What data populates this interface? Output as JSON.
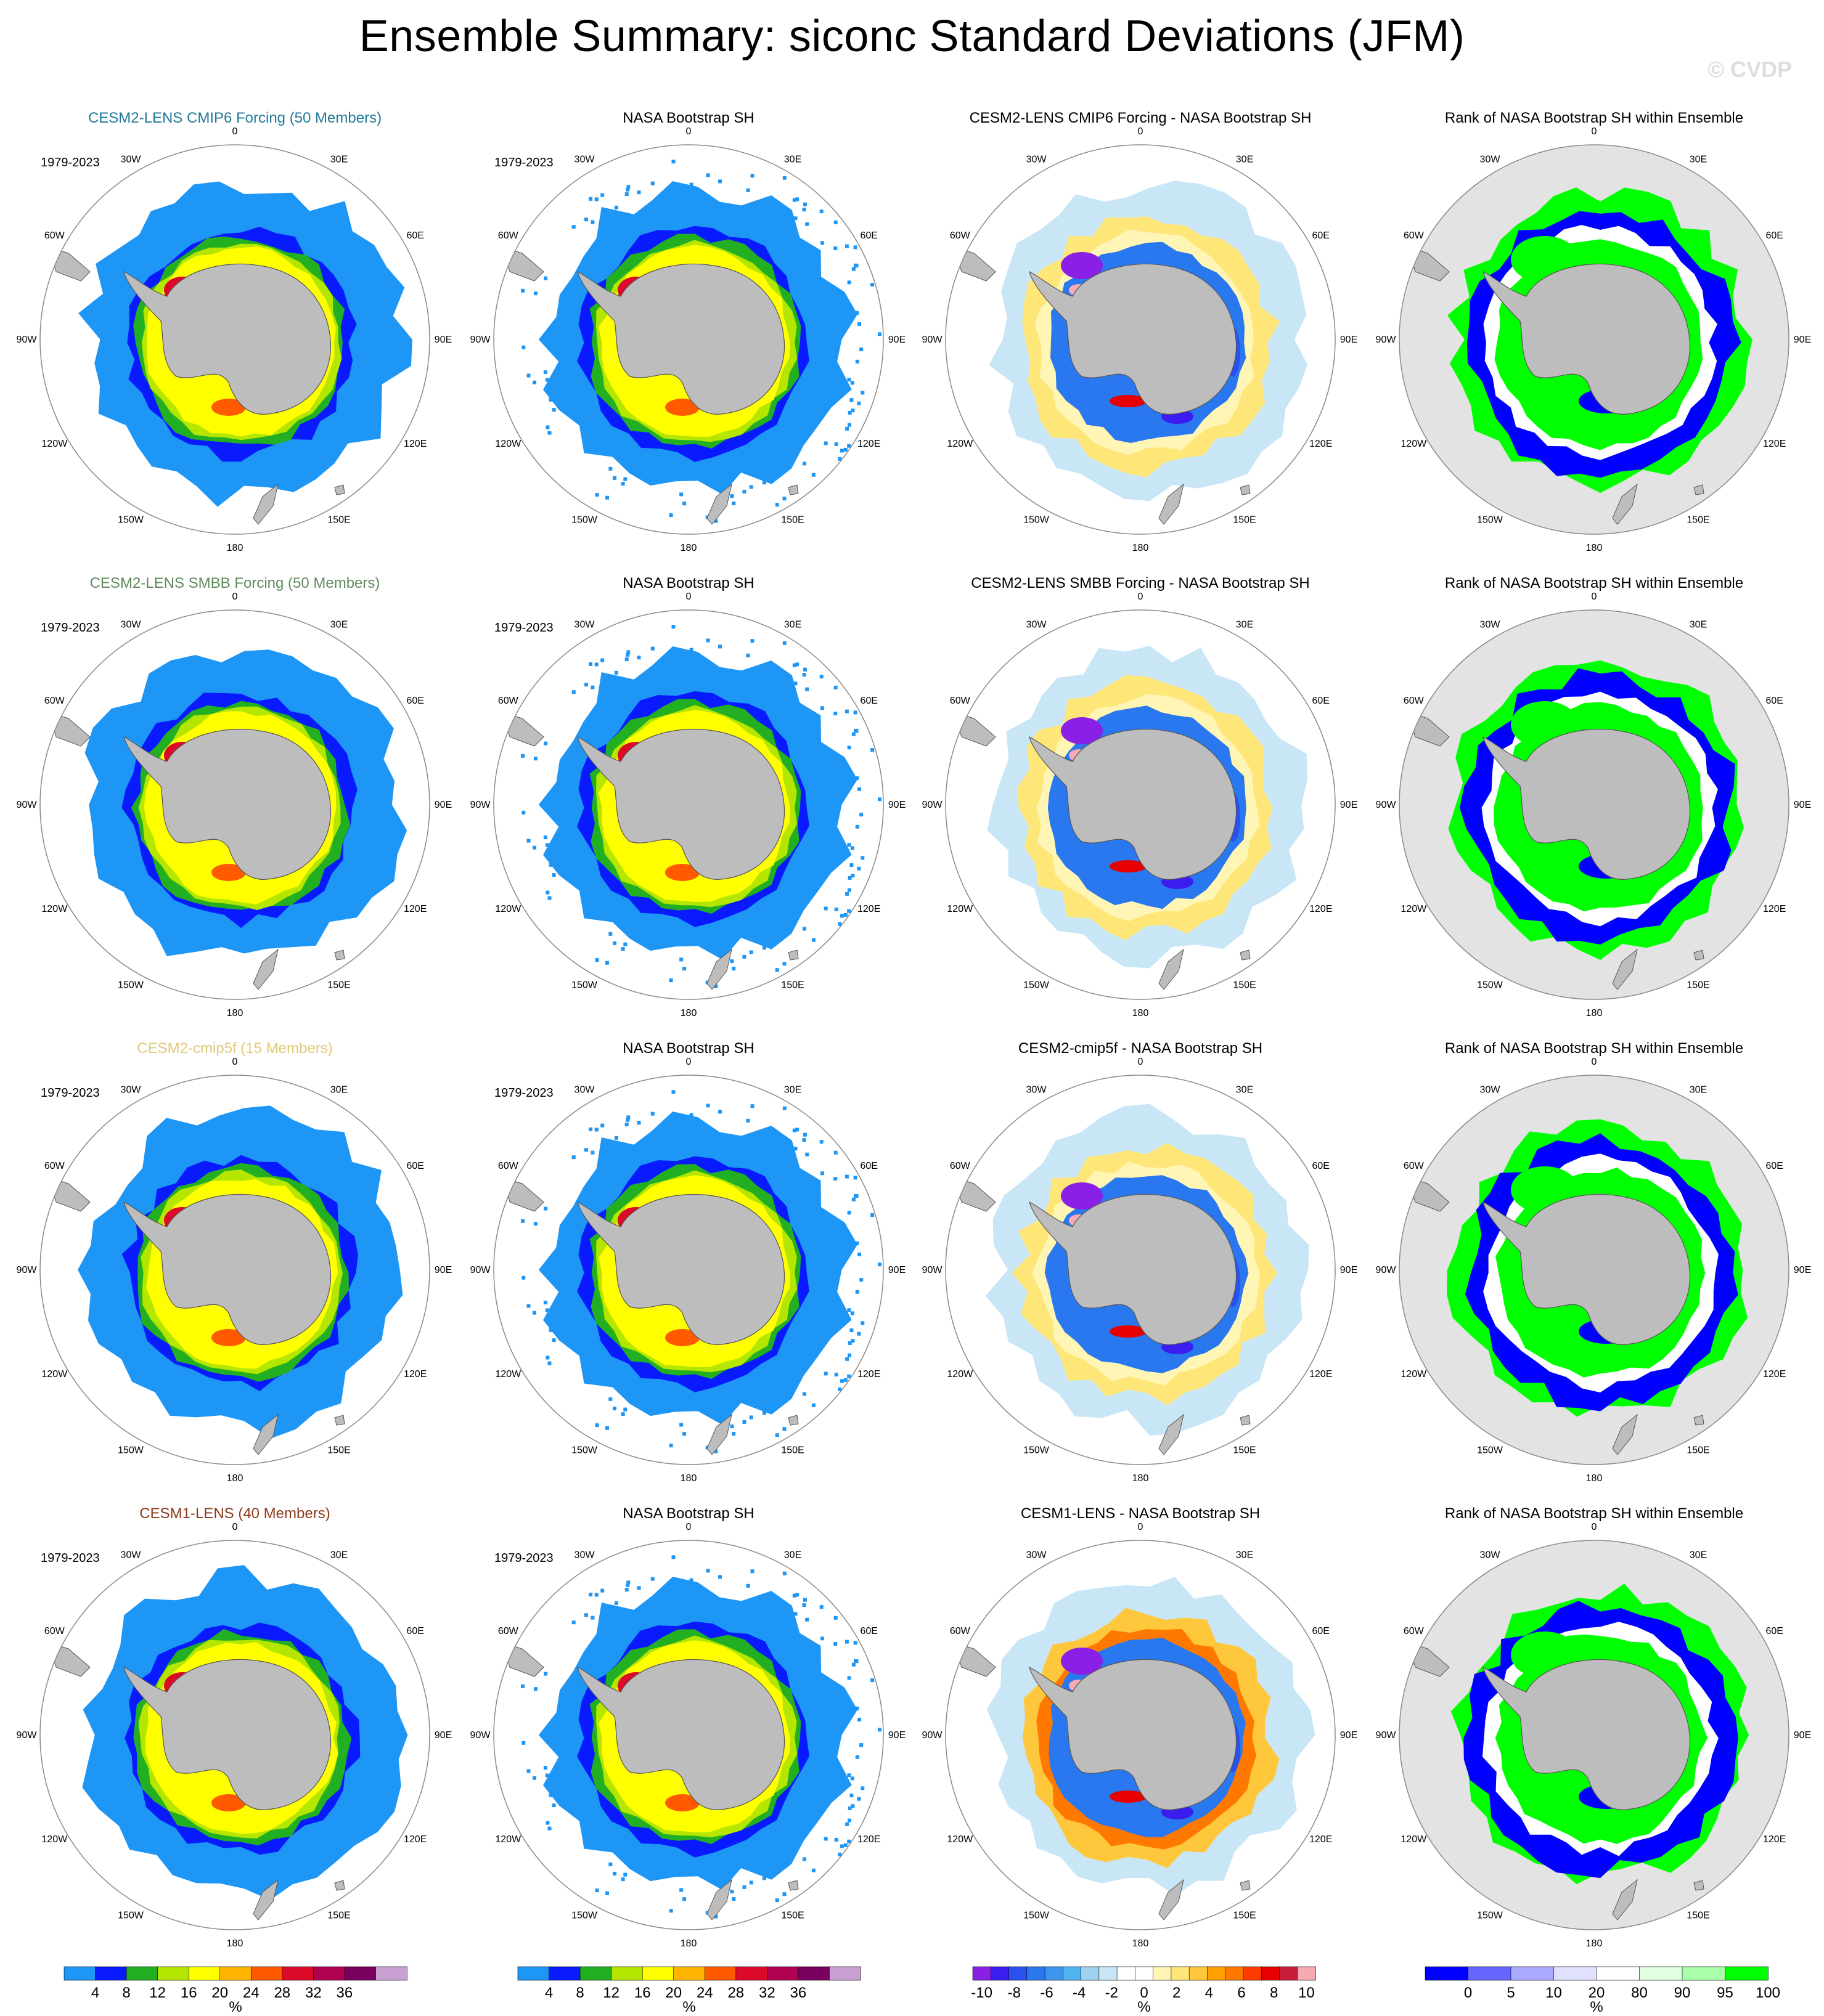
{
  "title": "Ensemble Summary: siconc Standard Deviations (JFM)",
  "watermark": "© CVDP",
  "period": "1979-2023",
  "lon_labels": [
    "0",
    "30E",
    "60E",
    "90E",
    "120E",
    "150E",
    "180",
    "150W",
    "120W",
    "90W",
    "60W",
    "30W"
  ],
  "colors": {
    "title_cmip6": "#1f7a9a",
    "title_smbb": "#5e8a5e",
    "title_cmip5f": "#e0c97a",
    "title_cesm1": "#8a3b1a",
    "land": "#bdbdbd",
    "rank_background": "#e3e3e3"
  },
  "rows": [
    {
      "model_title": "CESM2-LENS CMIP6 Forcing (50 Members)",
      "model_title_color": "#1f7a9a",
      "obs_title": "NASA Bootstrap SH",
      "diff_title": "CESM2-LENS CMIP6 Forcing - NASA Bootstrap SH",
      "rank_title": "Rank of NASA Bootstrap SH within Ensemble"
    },
    {
      "model_title": "CESM2-LENS SMBB Forcing (50 Members)",
      "model_title_color": "#5e8a5e",
      "obs_title": "NASA Bootstrap SH",
      "diff_title": "CESM2-LENS SMBB Forcing - NASA Bootstrap SH",
      "rank_title": "Rank of NASA Bootstrap SH within Ensemble"
    },
    {
      "model_title": "CESM2-cmip5f (15 Members)",
      "model_title_color": "#e0c97a",
      "obs_title": "NASA Bootstrap SH",
      "diff_title": "CESM2-cmip5f - NASA Bootstrap SH",
      "rank_title": "Rank of NASA Bootstrap SH within Ensemble"
    },
    {
      "model_title": "CESM1-LENS (40 Members)",
      "model_title_color": "#8a3b1a",
      "obs_title": "NASA Bootstrap SH",
      "diff_title": "CESM1-LENS - NASA Bootstrap SH",
      "rank_title": "Rank of NASA Bootstrap SH within Ensemble"
    }
  ],
  "chart_data": [
    {
      "type": "colorbar",
      "name": "std",
      "unit": "%",
      "tick_labels": [
        "4",
        "8",
        "12",
        "16",
        "20",
        "24",
        "28",
        "32",
        "36"
      ],
      "colors": [
        "#1e96f5",
        "#0a1aff",
        "#22b022",
        "#b4e600",
        "#ffff00",
        "#ffb400",
        "#ff5a00",
        "#dc0a28",
        "#b00050",
        "#7a005f",
        "#c8a0d2"
      ]
    },
    {
      "type": "colorbar",
      "name": "diff",
      "unit": "%",
      "tick_labels": [
        "-10",
        "-8",
        "-6",
        "-4",
        "-2",
        "0",
        "2",
        "4",
        "6",
        "8",
        "10"
      ],
      "colors": [
        "#8a20e6",
        "#3a1ef0",
        "#2a50f0",
        "#2a78f0",
        "#3c96f0",
        "#50b4f0",
        "#a0d2f0",
        "#c8e6f5",
        "#ffffff",
        "#ffffff",
        "#fff5b4",
        "#ffe678",
        "#ffc83c",
        "#ffa000",
        "#ff7800",
        "#ff3c00",
        "#e60000",
        "#c81e3c",
        "#f5aab4"
      ]
    },
    {
      "type": "colorbar",
      "name": "rank",
      "unit": "%",
      "tick_labels": [
        "0",
        "5",
        "10",
        "20",
        "80",
        "90",
        "95",
        "100"
      ],
      "colors": [
        "#0000ff",
        "#6666ff",
        "#aaaaff",
        "#e0e0ff",
        "#ffffff",
        "#e0ffe0",
        "#aaffaa",
        "#00ff00"
      ]
    }
  ]
}
